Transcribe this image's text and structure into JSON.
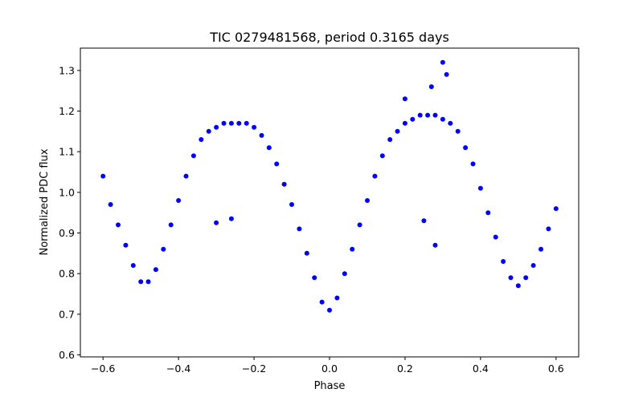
{
  "chart_data": {
    "type": "scatter",
    "title": "TIC 0279481568, period 0.3165 days",
    "xlabel": "Phase",
    "ylabel": "Normalized PDC flux",
    "xlim": [
      -0.66,
      0.66
    ],
    "ylim": [
      0.595,
      1.355
    ],
    "xticks": [
      -0.6,
      -0.4,
      -0.2,
      0.0,
      0.2,
      0.4,
      0.6
    ],
    "xtick_labels": [
      "−0.6",
      "−0.4",
      "−0.2",
      "0.0",
      "0.2",
      "0.4",
      "0.6"
    ],
    "yticks": [
      0.6,
      0.7,
      0.8,
      0.9,
      1.0,
      1.1,
      1.2,
      1.3
    ],
    "ytick_labels": [
      "0.6",
      "0.7",
      "0.8",
      "0.9",
      "1.0",
      "1.1",
      "1.2",
      "1.3"
    ],
    "grid": false,
    "marker_color": "#0000ff",
    "series": [
      {
        "name": "",
        "x": [
          -0.6,
          -0.58,
          -0.56,
          -0.54,
          -0.52,
          -0.5,
          -0.48,
          -0.46,
          -0.44,
          -0.42,
          -0.4,
          -0.38,
          -0.36,
          -0.34,
          -0.32,
          -0.3,
          -0.28,
          -0.26,
          -0.24,
          -0.22,
          -0.2,
          -0.18,
          -0.16,
          -0.14,
          -0.12,
          -0.1,
          -0.08,
          -0.06,
          -0.04,
          -0.02,
          0.0,
          0.02,
          0.04,
          0.06,
          0.08,
          0.1,
          0.12,
          0.14,
          0.16,
          0.18,
          0.2,
          0.22,
          0.24,
          0.26,
          0.28,
          0.3,
          0.32,
          0.34,
          0.36,
          0.38,
          0.4,
          0.42,
          0.44,
          0.46,
          0.48,
          0.5,
          0.52,
          0.54,
          0.56,
          0.58,
          0.6
        ],
        "y": [
          1.04,
          0.97,
          0.92,
          0.87,
          0.82,
          0.78,
          0.78,
          0.81,
          0.86,
          0.92,
          0.98,
          1.04,
          1.09,
          1.13,
          1.15,
          1.16,
          1.17,
          1.17,
          1.17,
          1.17,
          1.16,
          1.14,
          1.11,
          1.07,
          1.02,
          0.97,
          0.91,
          0.85,
          0.79,
          0.73,
          0.71,
          0.74,
          0.8,
          0.86,
          0.92,
          0.98,
          1.04,
          1.09,
          1.13,
          1.15,
          1.17,
          1.18,
          1.19,
          1.19,
          1.19,
          1.18,
          1.17,
          1.15,
          1.11,
          1.07,
          1.01,
          0.95,
          0.89,
          0.83,
          0.79,
          0.77,
          0.79,
          0.82,
          0.86,
          0.91,
          0.96
        ]
      },
      {
        "name": "",
        "x": [
          -0.3,
          -0.26,
          0.28,
          0.3,
          0.31,
          0.27,
          0.2,
          0.25
        ],
        "y": [
          0.925,
          0.935,
          0.87,
          1.32,
          1.29,
          1.26,
          1.23,
          0.93
        ]
      }
    ]
  }
}
